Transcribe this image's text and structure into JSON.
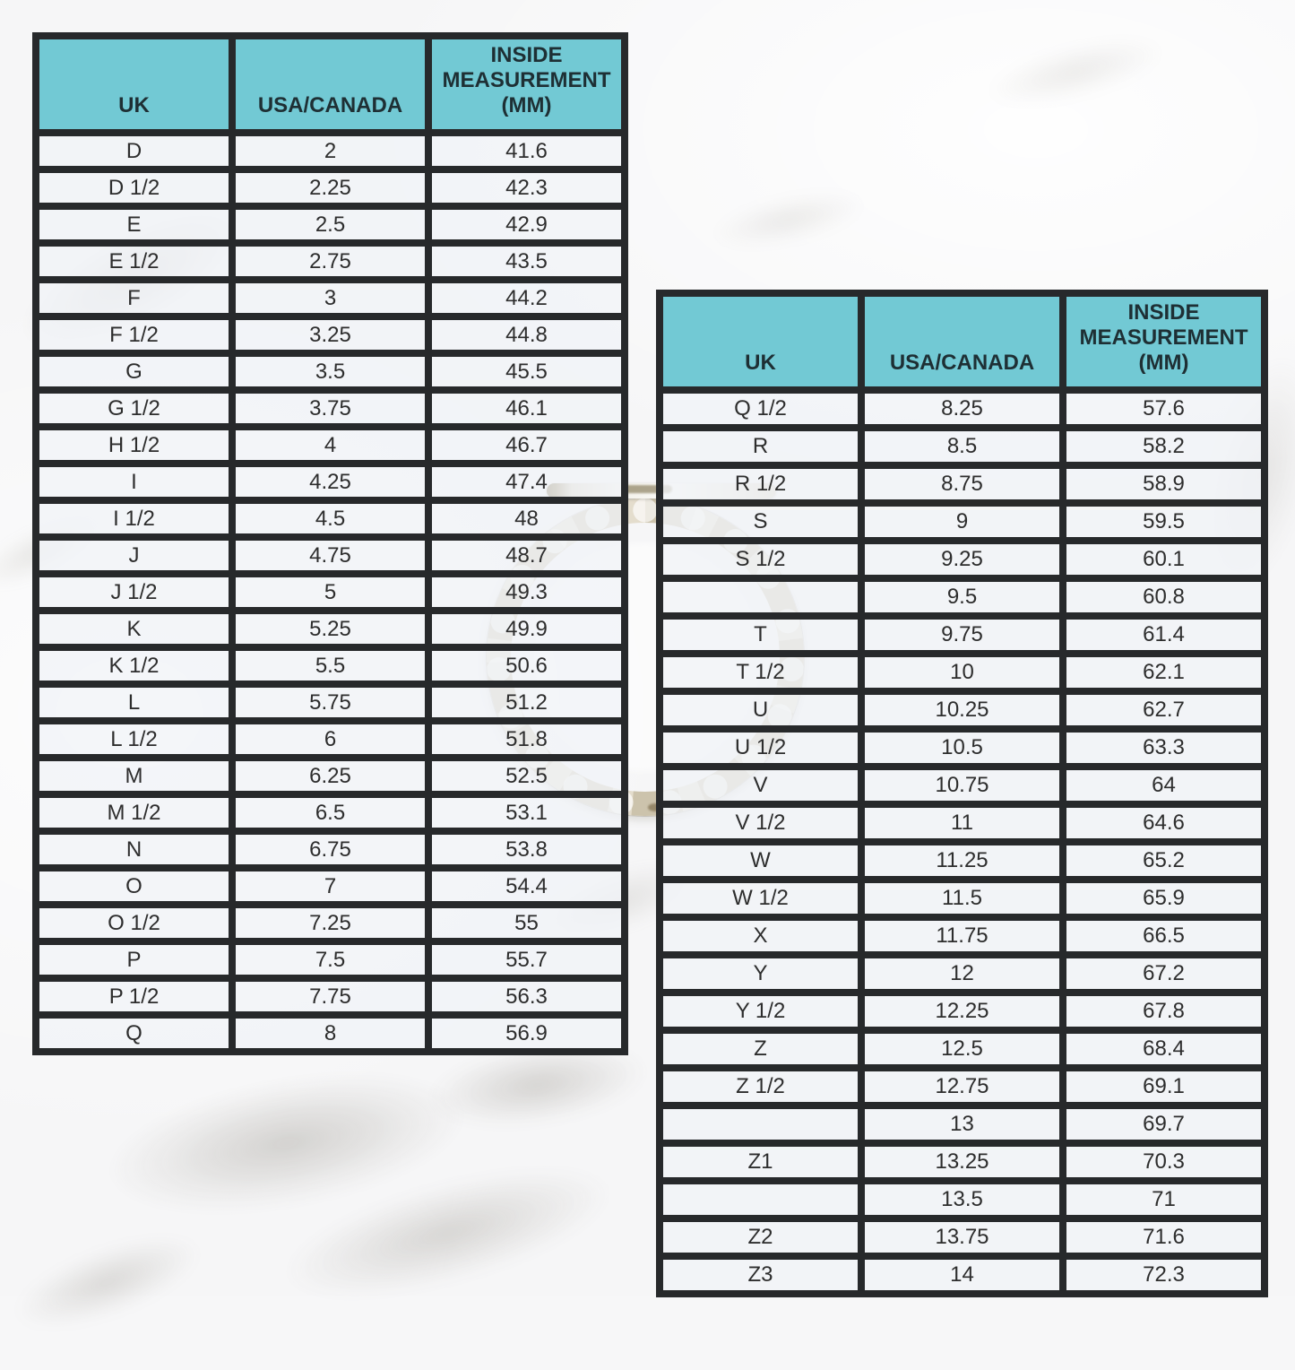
{
  "colors": {
    "header_bg": "#72c9d4",
    "header_text": "#1e2f34",
    "border": "#27292b",
    "cell_bg": "rgba(241,244,247,0.78)",
    "cell_text": "#2d2d2d"
  },
  "decor": {
    "ring_icon": "silver-band-ring-photo"
  },
  "chart_data": [
    {
      "type": "table",
      "title": "",
      "columns": [
        "UK",
        "USA/CANADA",
        "INSIDE MEASUREMENT (MM)"
      ],
      "rows": [
        [
          "D",
          "2",
          "41.6"
        ],
        [
          "D 1/2",
          "2.25",
          "42.3"
        ],
        [
          "E",
          "2.5",
          "42.9"
        ],
        [
          "E 1/2",
          "2.75",
          "43.5"
        ],
        [
          "F",
          "3",
          "44.2"
        ],
        [
          "F 1/2",
          "3.25",
          "44.8"
        ],
        [
          "G",
          "3.5",
          "45.5"
        ],
        [
          "G 1/2",
          "3.75",
          "46.1"
        ],
        [
          "H 1/2",
          "4",
          "46.7"
        ],
        [
          "I",
          "4.25",
          "47.4"
        ],
        [
          "I 1/2",
          "4.5",
          "48"
        ],
        [
          "J",
          "4.75",
          "48.7"
        ],
        [
          "J 1/2",
          "5",
          "49.3"
        ],
        [
          "K",
          "5.25",
          "49.9"
        ],
        [
          "K 1/2",
          "5.5",
          "50.6"
        ],
        [
          "L",
          "5.75",
          "51.2"
        ],
        [
          "L 1/2",
          "6",
          "51.8"
        ],
        [
          "M",
          "6.25",
          "52.5"
        ],
        [
          "M 1/2",
          "6.5",
          "53.1"
        ],
        [
          "N",
          "6.75",
          "53.8"
        ],
        [
          "O",
          "7",
          "54.4"
        ],
        [
          "O 1/2",
          "7.25",
          "55"
        ],
        [
          "P",
          "7.5",
          "55.7"
        ],
        [
          "P 1/2",
          "7.75",
          "56.3"
        ],
        [
          "Q",
          "8",
          "56.9"
        ]
      ]
    },
    {
      "type": "table",
      "title": "",
      "columns": [
        "UK",
        "USA/CANADA",
        "INSIDE MEASUREMENT (MM)"
      ],
      "rows": [
        [
          "Q 1/2",
          "8.25",
          "57.6"
        ],
        [
          "R",
          "8.5",
          "58.2"
        ],
        [
          "R 1/2",
          "8.75",
          "58.9"
        ],
        [
          "S",
          "9",
          "59.5"
        ],
        [
          "S 1/2",
          "9.25",
          "60.1"
        ],
        [
          "",
          "9.5",
          "60.8"
        ],
        [
          "T",
          "9.75",
          "61.4"
        ],
        [
          "T 1/2",
          "10",
          "62.1"
        ],
        [
          "U",
          "10.25",
          "62.7"
        ],
        [
          "U 1/2",
          "10.5",
          "63.3"
        ],
        [
          "V",
          "10.75",
          "64"
        ],
        [
          "V 1/2",
          "11",
          "64.6"
        ],
        [
          "W",
          "11.25",
          "65.2"
        ],
        [
          "W 1/2",
          "11.5",
          "65.9"
        ],
        [
          "X",
          "11.75",
          "66.5"
        ],
        [
          "Y",
          "12",
          "67.2"
        ],
        [
          "Y 1/2",
          "12.25",
          "67.8"
        ],
        [
          "Z",
          "12.5",
          "68.4"
        ],
        [
          "Z 1/2",
          "12.75",
          "69.1"
        ],
        [
          "",
          "13",
          "69.7"
        ],
        [
          "Z1",
          "13.25",
          "70.3"
        ],
        [
          "",
          "13.5",
          "71"
        ],
        [
          "Z2",
          "13.75",
          "71.6"
        ],
        [
          "Z3",
          "14",
          "72.3"
        ]
      ]
    }
  ]
}
